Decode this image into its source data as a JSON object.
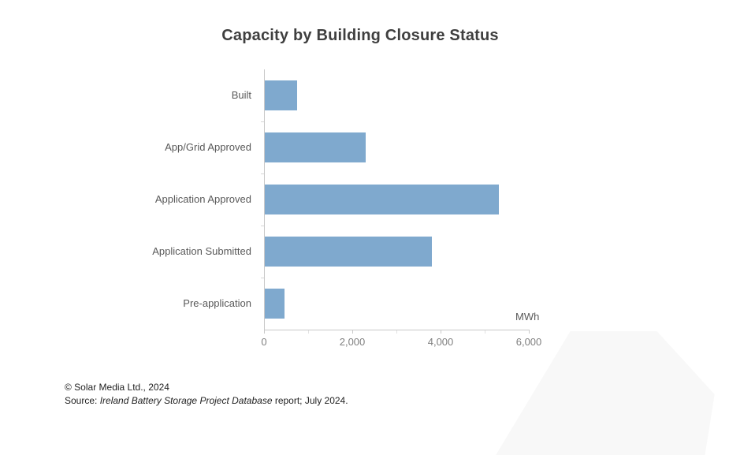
{
  "chart_data": {
    "type": "bar",
    "orientation": "horizontal",
    "title": "Capacity by Building Closure Status",
    "categories": [
      "Built",
      "App/Grid Approved",
      "Application Approved",
      "Application Submitted",
      "Pre-application"
    ],
    "values": [
      730,
      2290,
      5300,
      3780,
      450
    ],
    "unit_label": "MWh",
    "xlabel": "",
    "ylabel": "",
    "xlim": [
      0,
      6000
    ],
    "x_major_ticks": [
      0,
      2000,
      4000,
      6000
    ],
    "x_tick_labels": [
      "0",
      "2,000",
      "4,000",
      "6,000"
    ],
    "x_minor_tick_interval": 1000,
    "grid": "off",
    "legend": "none",
    "bar_color": "#7fa9ce",
    "axis_color": "#c9c9c9",
    "title_color": "#3f3f3f",
    "label_color": "#595959",
    "tick_label_color": "#7f7f7f"
  },
  "footer": {
    "copyright": "© Solar Media Ltd., 2024",
    "source_prefix": "Source: ",
    "source_italic": "Ireland Battery Storage Project Database",
    "source_suffix": " report; July 2024."
  }
}
